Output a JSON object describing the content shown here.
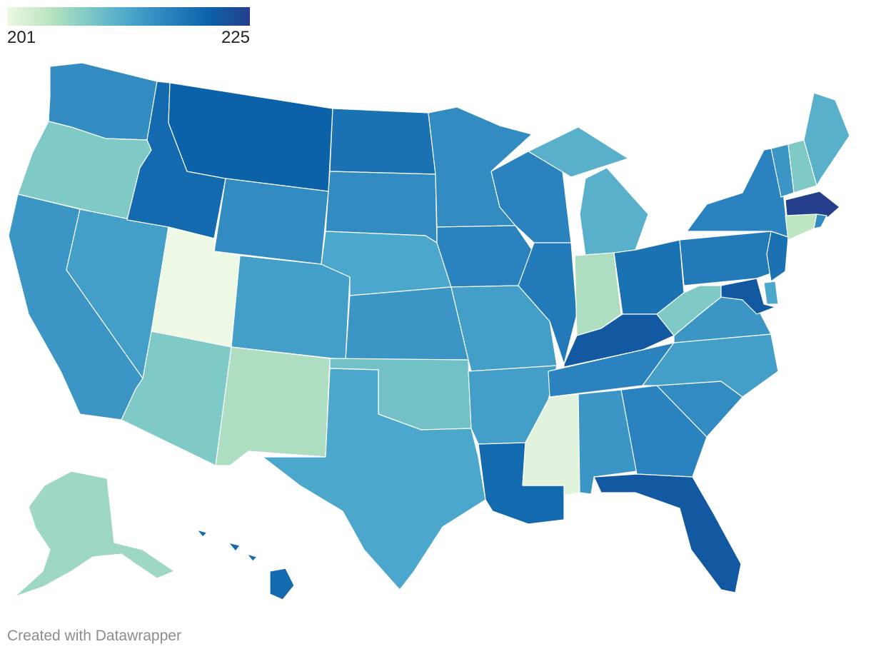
{
  "legend": {
    "min_label": "201",
    "max_label": "225",
    "min_value": 201,
    "max_value": 225,
    "colors": [
      "#edf8e5",
      "#bde5c0",
      "#7fc9c6",
      "#4ba7cb",
      "#2a82be",
      "#0c62a8",
      "#253f8c"
    ]
  },
  "credit": "Created with Datawrapper",
  "states": [
    {
      "id": "WA",
      "value": 216
    },
    {
      "id": "OR",
      "value": 209
    },
    {
      "id": "CA",
      "value": 215
    },
    {
      "id": "NV",
      "value": 214
    },
    {
      "id": "ID",
      "value": 220
    },
    {
      "id": "MT",
      "value": 221
    },
    {
      "id": "WY",
      "value": 216
    },
    {
      "id": "UT",
      "value": 201
    },
    {
      "id": "AZ",
      "value": 209
    },
    {
      "id": "CO",
      "value": 214
    },
    {
      "id": "NM",
      "value": 206
    },
    {
      "id": "ND",
      "value": 219
    },
    {
      "id": "SD",
      "value": 216
    },
    {
      "id": "NE",
      "value": 213
    },
    {
      "id": "KS",
      "value": 215
    },
    {
      "id": "OK",
      "value": 210
    },
    {
      "id": "TX",
      "value": 213
    },
    {
      "id": "MN",
      "value": 216
    },
    {
      "id": "IA",
      "value": 217
    },
    {
      "id": "MO",
      "value": 214
    },
    {
      "id": "AR",
      "value": 214
    },
    {
      "id": "LA",
      "value": 220
    },
    {
      "id": "WI",
      "value": 217
    },
    {
      "id": "IL",
      "value": 218
    },
    {
      "id": "MI",
      "value": 212
    },
    {
      "id": "IN",
      "value": 206
    },
    {
      "id": "OH",
      "value": 219
    },
    {
      "id": "KY",
      "value": 222
    },
    {
      "id": "TN",
      "value": 217
    },
    {
      "id": "MS",
      "value": 202
    },
    {
      "id": "AL",
      "value": 215
    },
    {
      "id": "GA",
      "value": 217
    },
    {
      "id": "FL",
      "value": 222
    },
    {
      "id": "SC",
      "value": 216
    },
    {
      "id": "NC",
      "value": 214
    },
    {
      "id": "VA",
      "value": 215
    },
    {
      "id": "WV",
      "value": 209
    },
    {
      "id": "PA",
      "value": 218
    },
    {
      "id": "NY",
      "value": 217
    },
    {
      "id": "VT",
      "value": 215
    },
    {
      "id": "NH",
      "value": 209
    },
    {
      "id": "ME",
      "value": 212
    },
    {
      "id": "MA",
      "value": 225
    },
    {
      "id": "CT",
      "value": 205
    },
    {
      "id": "RI",
      "value": 216
    },
    {
      "id": "NJ",
      "value": 219
    },
    {
      "id": "DE",
      "value": 213
    },
    {
      "id": "MD",
      "value": 222
    },
    {
      "id": "AK",
      "value": 207
    },
    {
      "id": "HI",
      "value": 220
    }
  ]
}
